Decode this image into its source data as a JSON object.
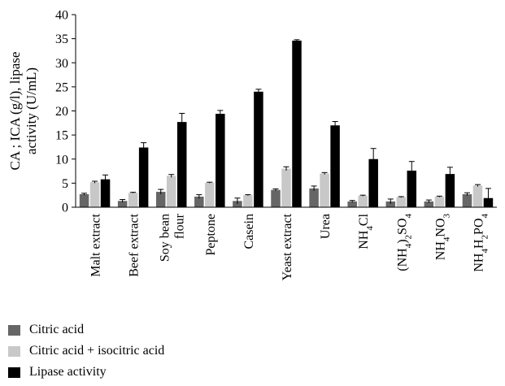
{
  "chart_data": {
    "type": "bar",
    "ylabel": [
      "CA ; ICA (g/l), lipase",
      "activity (U/mL)"
    ],
    "ylim": [
      0,
      40
    ],
    "yticks": [
      0,
      5,
      10,
      15,
      20,
      25,
      30,
      35,
      40
    ],
    "grid": false,
    "legend_position": "bottom-left",
    "categories": [
      {
        "label": [
          "Malt extract"
        ]
      },
      {
        "label": [
          "Beef extract"
        ]
      },
      {
        "label": [
          "Soy bean",
          "flour"
        ]
      },
      {
        "label": [
          "Peptone"
        ]
      },
      {
        "label": [
          "Casein"
        ]
      },
      {
        "label": [
          "Yeast extract"
        ]
      },
      {
        "label": [
          "Urea"
        ]
      },
      {
        "label": [
          {
            "t": "NH"
          },
          {
            "t": "4",
            "sub": true
          },
          {
            "t": "Cl"
          }
        ]
      },
      {
        "label": [
          {
            "t": "(NH"
          },
          {
            "t": "4",
            "sub": true
          },
          {
            "t": ")"
          },
          {
            "t": "2",
            "sub": true
          },
          {
            "t": "SO"
          },
          {
            "t": "4",
            "sub": true
          }
        ]
      },
      {
        "label": [
          {
            "t": "NH"
          },
          {
            "t": "4",
            "sub": true
          },
          {
            "t": "NO"
          },
          {
            "t": "3",
            "sub": true
          }
        ]
      },
      {
        "label": [
          {
            "t": "NH"
          },
          {
            "t": "4",
            "sub": true
          },
          {
            "t": "H"
          },
          {
            "t": "2",
            "sub": true
          },
          {
            "t": "PO"
          },
          {
            "t": "4",
            "sub": true
          }
        ]
      }
    ],
    "series": [
      {
        "name": "Citric acid",
        "color": "#666666",
        "values": [
          2.7,
          1.3,
          3.2,
          2.2,
          1.3,
          3.6,
          3.9,
          1.2,
          1.2,
          1.2,
          2.7
        ],
        "errors": [
          0.2,
          0.3,
          0.5,
          0.4,
          0.6,
          0.2,
          0.5,
          0.2,
          0.5,
          0.3,
          0.3
        ]
      },
      {
        "name": "Citric acid + isocitric acid",
        "color": "#c8c8c8",
        "values": [
          5.2,
          3.0,
          6.5,
          5.1,
          2.5,
          8.0,
          7.0,
          2.4,
          2.1,
          2.2,
          4.5
        ],
        "errors": [
          0.2,
          0.1,
          0.3,
          0.1,
          0.1,
          0.4,
          0.2,
          0.1,
          0.1,
          0.1,
          0.2
        ]
      },
      {
        "name": "Lipase activity",
        "color": "#000000",
        "values": [
          5.8,
          12.4,
          17.7,
          19.4,
          24.0,
          34.6,
          17.0,
          10.0,
          7.6,
          6.9,
          1.9
        ],
        "errors": [
          0.9,
          1.0,
          1.8,
          0.7,
          0.5,
          0.2,
          0.8,
          2.2,
          1.9,
          1.4,
          2.0
        ]
      }
    ]
  }
}
